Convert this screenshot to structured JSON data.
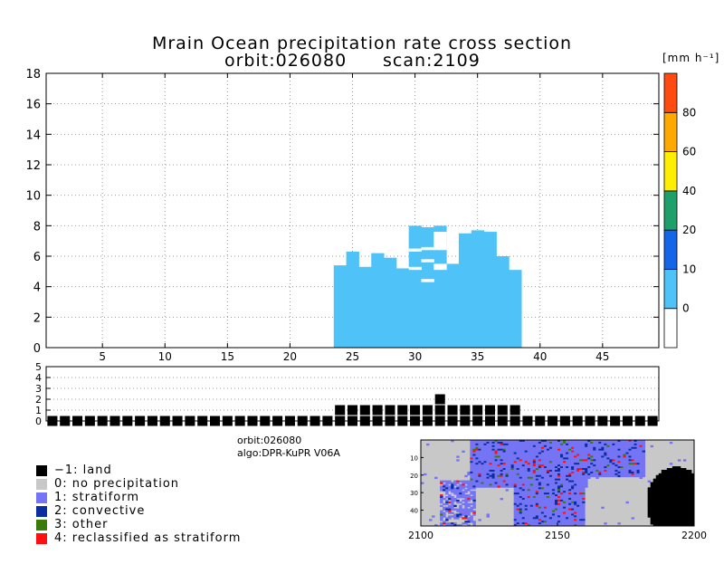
{
  "chart_data": [
    {
      "type": "bar",
      "name": "precipitation-rate-cross-section",
      "title_line1": "Mrain Ocean precipitation rate cross section",
      "title_line2_orbit": "orbit:026080",
      "title_line2_scan": "scan:2109",
      "xlabel": "",
      "ylabel": "",
      "xlim": [
        0.5,
        49.5
      ],
      "ylim": [
        0,
        18
      ],
      "x_ticks": [
        5,
        10,
        15,
        20,
        25,
        30,
        35,
        40,
        45
      ],
      "y_ticks": [
        0,
        2,
        4,
        6,
        8,
        10,
        12,
        14,
        16,
        18
      ],
      "grid": true,
      "color": "#4fc3f7",
      "bars": [
        {
          "x": 24,
          "top": 5.4
        },
        {
          "x": 25,
          "top": 6.3
        },
        {
          "x": 26,
          "top": 5.3
        },
        {
          "x": 27,
          "top": 6.2
        },
        {
          "x": 28,
          "top": 5.9
        },
        {
          "x": 29,
          "top": 5.2
        },
        {
          "x": 30,
          "top": 8.0
        },
        {
          "x": 31,
          "top": 7.9
        },
        {
          "x": 32,
          "top": 8.0
        },
        {
          "x": 33,
          "top": 5.5
        },
        {
          "x": 34,
          "top": 7.5
        },
        {
          "x": 35,
          "top": 7.7
        },
        {
          "x": 36,
          "top": 7.6
        },
        {
          "x": 37,
          "top": 6.0
        },
        {
          "x": 38,
          "top": 5.1
        }
      ],
      "gaps": [
        {
          "x": 30,
          "from": 6.3,
          "to": 6.5
        },
        {
          "x": 30,
          "from": 5.1,
          "to": 5.3
        },
        {
          "x": 31,
          "from": 6.4,
          "to": 6.6
        },
        {
          "x": 31,
          "from": 4.3,
          "to": 4.5
        },
        {
          "x": 31,
          "from": 5.6,
          "to": 5.8
        },
        {
          "x": 32,
          "from": 6.4,
          "to": 7.6
        },
        {
          "x": 32,
          "from": 5.1,
          "to": 5.5
        }
      ]
    },
    {
      "type": "bar",
      "name": "precipitation-type-strip",
      "xlim": [
        0.5,
        49.5
      ],
      "ylim": [
        0,
        5
      ],
      "y_ticks": [
        0,
        1,
        2,
        3,
        4,
        5
      ],
      "grid": true,
      "values": [
        0,
        0,
        0,
        0,
        0,
        0,
        0,
        0,
        0,
        0,
        0,
        0,
        0,
        0,
        0,
        0,
        0,
        0,
        0,
        0,
        0,
        0,
        0,
        1,
        1,
        1,
        1,
        1,
        1,
        1,
        1,
        2,
        1,
        1,
        1,
        1,
        1,
        1,
        0,
        0,
        0,
        0,
        0,
        0,
        0,
        0,
        0,
        0,
        0
      ]
    },
    {
      "type": "heatmap",
      "name": "swath-map",
      "xlim": [
        2100,
        2200
      ],
      "x_ticks": [
        2100,
        2150,
        2200
      ],
      "y_ticks": [
        10,
        20,
        30,
        40
      ]
    }
  ],
  "colorbar": {
    "unit": "[mm h⁻¹]",
    "segments": [
      {
        "color": "#ffffff"
      },
      {
        "color": "#4fc3f7"
      },
      {
        "color": "#1565e8"
      },
      {
        "color": "#1fa06a"
      },
      {
        "color": "#ffee00"
      },
      {
        "color": "#ffa800"
      },
      {
        "color": "#ff4a10"
      }
    ],
    "labels": [
      "0",
      "10",
      "20",
      "40",
      "60",
      "80"
    ]
  },
  "info": {
    "orbit": "orbit:026080",
    "algo": "algo:DPR-KuPR V06A"
  },
  "legend": [
    {
      "label": "−1: land",
      "color": "#000000"
    },
    {
      "label": "0: no precipitation",
      "color": "#c8c8c8"
    },
    {
      "label": "1: stratiform",
      "color": "#7474f4"
    },
    {
      "label": "2: convective",
      "color": "#0a2ea0"
    },
    {
      "label": "3: other",
      "color": "#3a7a0a"
    },
    {
      "label": "4: reclassified as stratiform",
      "color": "#ff1010"
    }
  ]
}
